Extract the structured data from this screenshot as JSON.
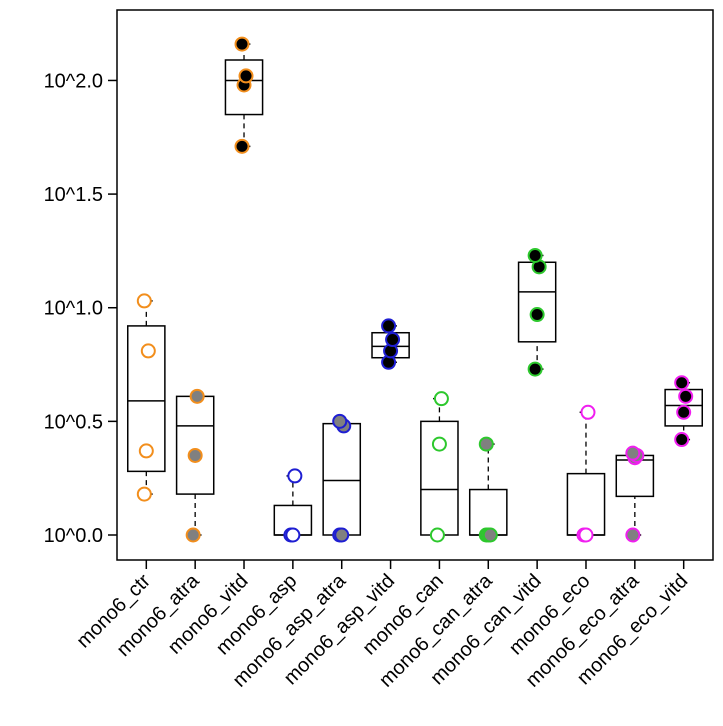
{
  "chart_data": {
    "type": "box",
    "title": "",
    "xlabel": "",
    "ylabel": "",
    "y_scale": "log10",
    "ylim_log10": [
      -0.11,
      2.31
    ],
    "yticks": [
      {
        "label": "10^0.0",
        "log10": 0.0
      },
      {
        "label": "10^0.5",
        "log10": 0.5
      },
      {
        "label": "10^1.0",
        "log10": 1.0
      },
      {
        "label": "10^1.5",
        "log10": 1.5
      },
      {
        "label": "10^2.0",
        "log10": 2.0
      }
    ],
    "grid": false,
    "legend": "none",
    "categories": [
      "mono6_ctr",
      "mono6_atra",
      "mono6_vitd",
      "mono6_asp",
      "mono6_asp_atra",
      "mono6_asp_vitd",
      "mono6_can",
      "mono6_can_atra",
      "mono6_can_vitd",
      "mono6_eco",
      "mono6_eco_atra",
      "mono6_eco_vitd"
    ],
    "groups": [
      {
        "category": "mono6_ctr",
        "color": "#F28E1C",
        "fill": "none",
        "box": {
          "whisker_low": 0.18,
          "q1": 0.28,
          "median": 0.59,
          "q3": 0.92,
          "whisker_high": 1.03
        },
        "points": [
          0.18,
          0.37,
          0.81,
          1.03
        ]
      },
      {
        "category": "mono6_atra",
        "color": "#F28E1C",
        "fill": "#808080",
        "box": {
          "whisker_low": 0.0,
          "q1": 0.18,
          "median": 0.48,
          "q3": 0.61,
          "whisker_high": 0.61
        },
        "points": [
          0.0,
          0.35,
          0.61
        ]
      },
      {
        "category": "mono6_vitd",
        "color": "#F28E1C",
        "fill": "#000000",
        "box": {
          "whisker_low": 1.71,
          "q1": 1.85,
          "median": 2.0,
          "q3": 2.09,
          "whisker_high": 2.16
        },
        "points": [
          1.71,
          1.98,
          2.02,
          2.16
        ]
      },
      {
        "category": "mono6_asp",
        "color": "#1E1ED2",
        "fill": "none",
        "box": {
          "whisker_low": 0.0,
          "q1": 0.0,
          "median": 0.0,
          "q3": 0.13,
          "whisker_high": 0.26
        },
        "points": [
          0.0,
          0.0,
          0.26
        ]
      },
      {
        "category": "mono6_asp_atra",
        "color": "#1E1ED2",
        "fill": "#808080",
        "box": {
          "whisker_low": 0.0,
          "q1": 0.0,
          "median": 0.24,
          "q3": 0.49,
          "whisker_high": 0.5
        },
        "points": [
          0.0,
          0.0,
          0.48,
          0.5
        ]
      },
      {
        "category": "mono6_asp_vitd",
        "color": "#1E1ED2",
        "fill": "#000000",
        "box": {
          "whisker_low": 0.76,
          "q1": 0.78,
          "median": 0.83,
          "q3": 0.89,
          "whisker_high": 0.92
        },
        "points": [
          0.76,
          0.81,
          0.86,
          0.92
        ]
      },
      {
        "category": "mono6_can",
        "color": "#2DC82D",
        "fill": "none",
        "box": {
          "whisker_low": 0.0,
          "q1": 0.0,
          "median": 0.2,
          "q3": 0.5,
          "whisker_high": 0.6
        },
        "points": [
          0.0,
          0.4,
          0.6
        ]
      },
      {
        "category": "mono6_can_atra",
        "color": "#2DC82D",
        "fill": "#808080",
        "box": {
          "whisker_low": 0.0,
          "q1": 0.0,
          "median": 0.0,
          "q3": 0.2,
          "whisker_high": 0.4
        },
        "points": [
          0.0,
          0.0,
          0.0,
          0.4
        ]
      },
      {
        "category": "mono6_can_vitd",
        "color": "#2DC82D",
        "fill": "#000000",
        "box": {
          "whisker_low": 0.73,
          "q1": 0.85,
          "median": 1.07,
          "q3": 1.2,
          "whisker_high": 1.23
        },
        "points": [
          0.73,
          0.97,
          1.18,
          1.23
        ]
      },
      {
        "category": "mono6_eco",
        "color": "#F01EF0",
        "fill": "none",
        "box": {
          "whisker_low": 0.0,
          "q1": 0.0,
          "median": 0.0,
          "q3": 0.27,
          "whisker_high": 0.54
        },
        "points": [
          0.0,
          0.0,
          0.54
        ]
      },
      {
        "category": "mono6_eco_atra",
        "color": "#F01EF0",
        "fill": "#808080",
        "box": {
          "whisker_low": 0.0,
          "q1": 0.17,
          "median": 0.33,
          "q3": 0.35,
          "whisker_high": 0.36
        },
        "points": [
          0.0,
          0.34,
          0.35,
          0.36
        ]
      },
      {
        "category": "mono6_eco_vitd",
        "color": "#F01EF0",
        "fill": "#000000",
        "box": {
          "whisker_low": 0.42,
          "q1": 0.48,
          "median": 0.57,
          "q3": 0.64,
          "whisker_high": 0.67
        },
        "points": [
          0.42,
          0.54,
          0.61,
          0.67
        ]
      }
    ]
  }
}
